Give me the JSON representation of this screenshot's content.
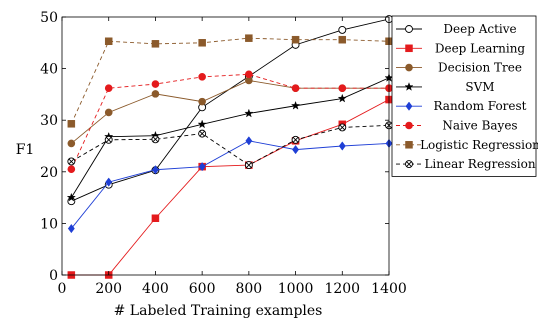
{
  "chart_data": {
    "type": "line",
    "title": "",
    "xlabel": "# Labeled Training examples",
    "ylabel": "F1",
    "xlim": [
      0,
      1400
    ],
    "ylim": [
      0,
      50
    ],
    "x": [
      40,
      200,
      400,
      600,
      800,
      1000,
      1200,
      1400
    ],
    "xticks": [
      0,
      200,
      400,
      600,
      800,
      1000,
      1200,
      1400
    ],
    "yticks": [
      0,
      10,
      20,
      30,
      40,
      50
    ],
    "grid": false,
    "legend_position": "right",
    "series": [
      {
        "name": "Deep Active",
        "color": "#000000",
        "dashed": false,
        "marker": "open-circle",
        "values": [
          14.3,
          17.5,
          20.3,
          32.5,
          38.5,
          44.6,
          47.5,
          49.6
        ]
      },
      {
        "name": "Deep Learning",
        "color": "#e41a1c",
        "dashed": false,
        "marker": "square",
        "values": [
          0,
          0,
          11,
          21,
          21.3,
          26,
          29.2,
          34
        ]
      },
      {
        "name": "Decision Tree",
        "color": "#8b5a2b",
        "dashed": false,
        "marker": "filled-circle",
        "values": [
          25.5,
          31.5,
          35.1,
          33.6,
          37.7,
          36.2,
          36.2,
          36.2
        ]
      },
      {
        "name": "SVM",
        "color": "#000000",
        "dashed": false,
        "marker": "star",
        "values": [
          15,
          26.8,
          27,
          29.2,
          31.3,
          32.8,
          34.2,
          38.2
        ]
      },
      {
        "name": "Random Forest",
        "color": "#1f3fd6",
        "dashed": false,
        "marker": "diamond",
        "values": [
          9,
          18,
          20.4,
          21,
          26,
          24.3,
          25,
          25.5
        ]
      },
      {
        "name": "Naive Bayes",
        "color": "#e41a1c",
        "dashed": true,
        "marker": "filled-circle",
        "values": [
          20.5,
          36.2,
          37,
          38.4,
          38.9,
          36.2,
          36.2,
          36.2
        ]
      },
      {
        "name": "Logistic Regression",
        "color": "#8b5a2b",
        "dashed": true,
        "marker": "square",
        "values": [
          29.3,
          45.3,
          44.8,
          45,
          45.9,
          45.6,
          45.6,
          45.3
        ]
      },
      {
        "name": "Linear Regression",
        "color": "#000000",
        "dashed": true,
        "marker": "x-circle",
        "values": [
          22,
          26.2,
          26.3,
          27.4,
          21.3,
          26.2,
          28.6,
          29
        ]
      }
    ]
  }
}
